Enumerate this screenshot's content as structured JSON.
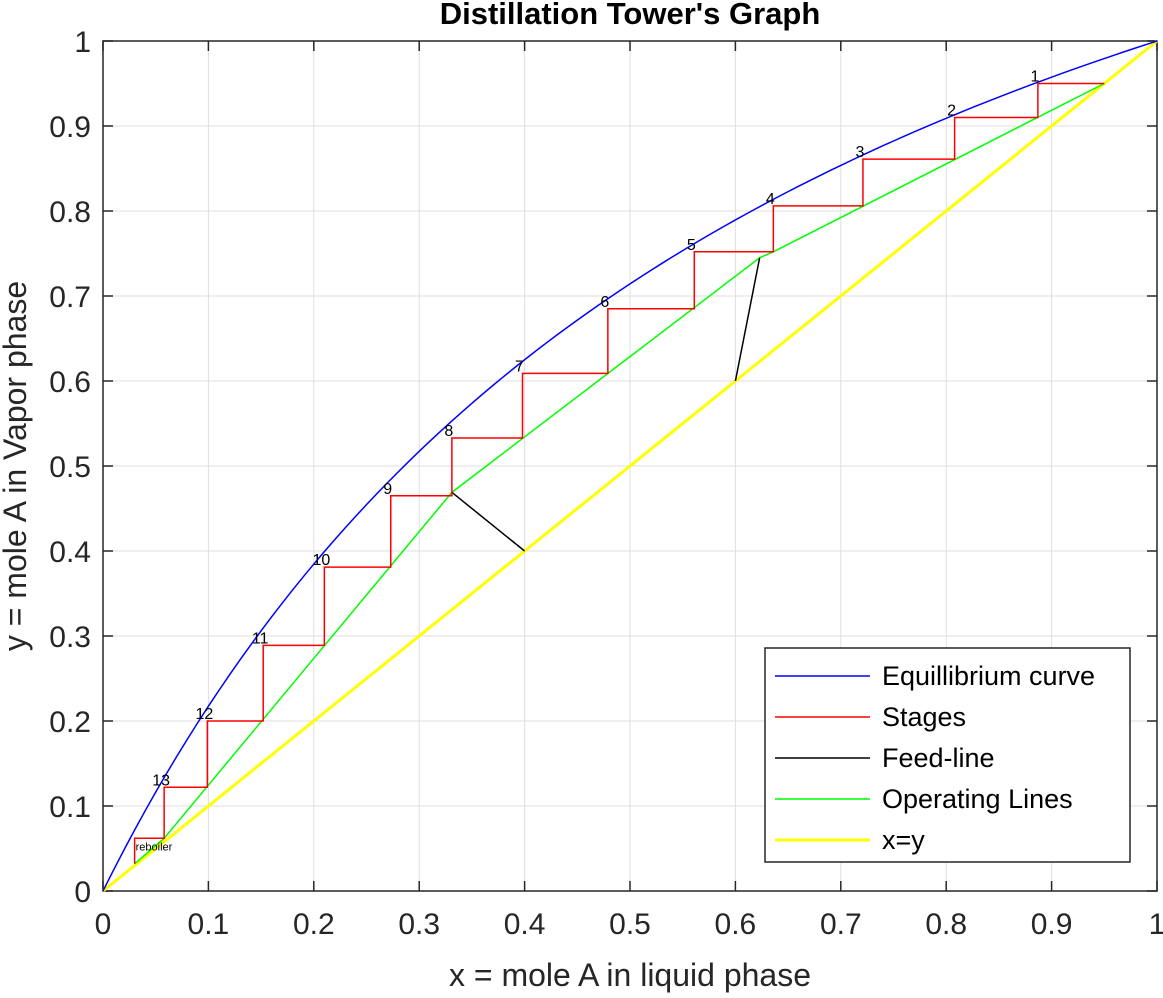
{
  "chart_data": {
    "type": "line",
    "title": "Distillation Tower's Graph",
    "xlabel": "x = mole A in liquid phase",
    "ylabel": "y = mole A in Vapor phase",
    "xlim": [
      0,
      1
    ],
    "ylim": [
      0,
      1
    ],
    "grid": true,
    "legend_position": "bottom-right",
    "x_ticks": [
      0,
      0.1,
      0.2,
      0.3,
      0.4,
      0.5,
      0.6,
      0.7,
      0.8,
      0.9,
      1
    ],
    "x_tick_labels": [
      "0",
      "0.1",
      "0.2",
      "0.3",
      "0.4",
      "0.5",
      "0.6",
      "0.7",
      "0.8",
      "0.9",
      "1"
    ],
    "y_ticks": [
      0,
      0.1,
      0.2,
      0.3,
      0.4,
      0.5,
      0.6,
      0.7,
      0.8,
      0.9,
      1
    ],
    "y_tick_labels": [
      "0",
      "0.1",
      "0.2",
      "0.3",
      "0.4",
      "0.5",
      "0.6",
      "0.7",
      "0.8",
      "0.9",
      "1"
    ],
    "series": [
      {
        "name": "Equillibrium curve",
        "color": "#0000ff",
        "width": 1.5,
        "x": [
          0,
          0.025,
          0.05,
          0.075,
          0.1,
          0.15,
          0.2,
          0.25,
          0.3,
          0.35,
          0.4,
          0.45,
          0.5,
          0.55,
          0.6,
          0.65,
          0.7,
          0.75,
          0.8,
          0.85,
          0.9,
          0.95,
          1
        ],
        "y": [
          0,
          0.0566,
          0.1089,
          0.1574,
          0.2024,
          0.2838,
          0.3553,
          0.4186,
          0.4751,
          0.5257,
          0.5714,
          0.6129,
          0.6507,
          0.6853,
          0.7171,
          0.7464,
          0.7735,
          0.7987,
          0.8221,
          0.844,
          0.8645,
          0.8837,
          1.0
        ]
      },
      {
        "name": "Stages",
        "color": "#ff0000",
        "width": 1.5,
        "x": [
          0.95,
          0.887,
          0.887,
          0.808,
          0.808,
          0.721,
          0.721,
          0.636,
          0.636,
          0.561,
          0.561,
          0.479,
          0.479,
          0.398,
          0.398,
          0.331,
          0.331,
          0.273,
          0.273,
          0.21,
          0.21,
          0.152,
          0.152,
          0.099,
          0.099,
          0.058,
          0.058,
          0.03,
          0.03
        ],
        "y": [
          0.95,
          0.95,
          0.91,
          0.91,
          0.861,
          0.861,
          0.806,
          0.806,
          0.752,
          0.752,
          0.685,
          0.685,
          0.609,
          0.609,
          0.533,
          0.533,
          0.465,
          0.465,
          0.381,
          0.381,
          0.289,
          0.289,
          0.2,
          0.2,
          0.122,
          0.122,
          0.062,
          0.062,
          0.032
        ]
      },
      {
        "name": "Feed-line",
        "color": "#000000",
        "width": 1.5,
        "x": [
          0.6,
          0.623
        ],
        "y": [
          0.6,
          0.745
        ],
        "x2": [
          0.4,
          0.331
        ],
        "y2": [
          0.4,
          0.469
        ]
      },
      {
        "name": "Operating Lines",
        "color": "#00ff00",
        "width": 1.5,
        "x": [
          0.95,
          0.636,
          0.623,
          0.331,
          0.058,
          0.03
        ],
        "y": [
          0.95,
          0.752,
          0.745,
          0.469,
          0.062,
          0.032
        ]
      },
      {
        "name": "x=y",
        "color": "#ffff00",
        "width": 3,
        "x": [
          0,
          1
        ],
        "y": [
          0,
          1
        ]
      }
    ],
    "stage_labels": [
      {
        "text": "1",
        "x": 0.887,
        "y": 0.95
      },
      {
        "text": "2",
        "x": 0.808,
        "y": 0.91
      },
      {
        "text": "3",
        "x": 0.721,
        "y": 0.861
      },
      {
        "text": "4",
        "x": 0.636,
        "y": 0.806
      },
      {
        "text": "5",
        "x": 0.561,
        "y": 0.752
      },
      {
        "text": "6",
        "x": 0.479,
        "y": 0.685
      },
      {
        "text": "7",
        "x": 0.398,
        "y": 0.609
      },
      {
        "text": "8",
        "x": 0.331,
        "y": 0.533
      },
      {
        "text": "9",
        "x": 0.273,
        "y": 0.465
      },
      {
        "text": "10",
        "x": 0.21,
        "y": 0.381
      },
      {
        "text": "11",
        "x": 0.152,
        "y": 0.289
      },
      {
        "text": "12",
        "x": 0.099,
        "y": 0.2
      },
      {
        "text": "13",
        "x": 0.058,
        "y": 0.122
      }
    ],
    "reboiler_label": {
      "text": "reboiler",
      "x": 0.03,
      "y": 0.062
    }
  }
}
